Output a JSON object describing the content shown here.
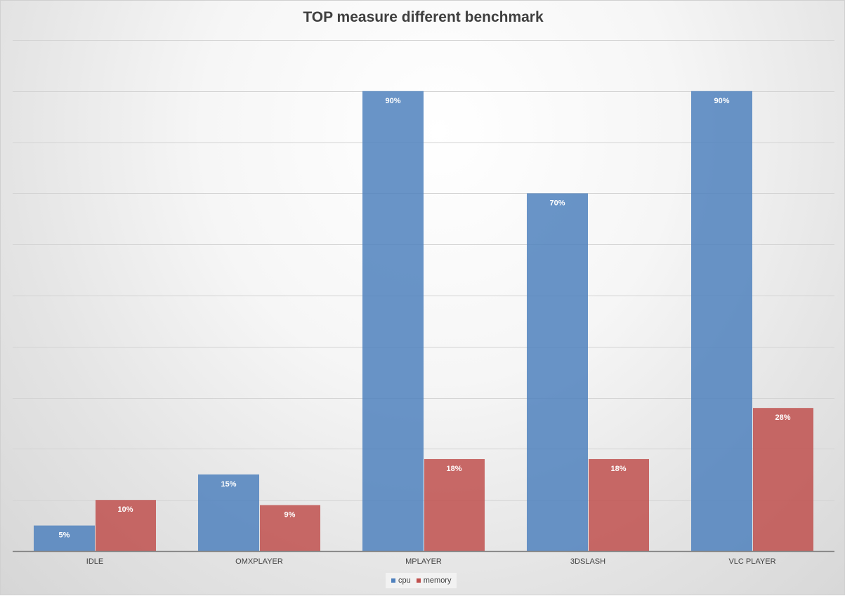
{
  "chart_data": {
    "type": "bar",
    "title": "TOP measure different benchmark",
    "categories": [
      "IDLE",
      "OMXPLAYER",
      "MPLAYER",
      "3DSLASH",
      "VLC PLAYER"
    ],
    "series": [
      {
        "name": "cpu",
        "color": "#4f81bd",
        "values": [
          5,
          15,
          90,
          70,
          90
        ],
        "labels": [
          "5%",
          "15%",
          "90%",
          "70%",
          "90%"
        ]
      },
      {
        "name": "memory",
        "color": "#c0504d",
        "values": [
          10,
          9,
          18,
          18,
          28
        ],
        "labels": [
          "10%",
          "9%",
          "18%",
          "18%",
          "28%"
        ]
      }
    ],
    "xlabel": "",
    "ylabel": "",
    "ylim": [
      0,
      100
    ],
    "grid": true,
    "legend_position": "bottom"
  }
}
